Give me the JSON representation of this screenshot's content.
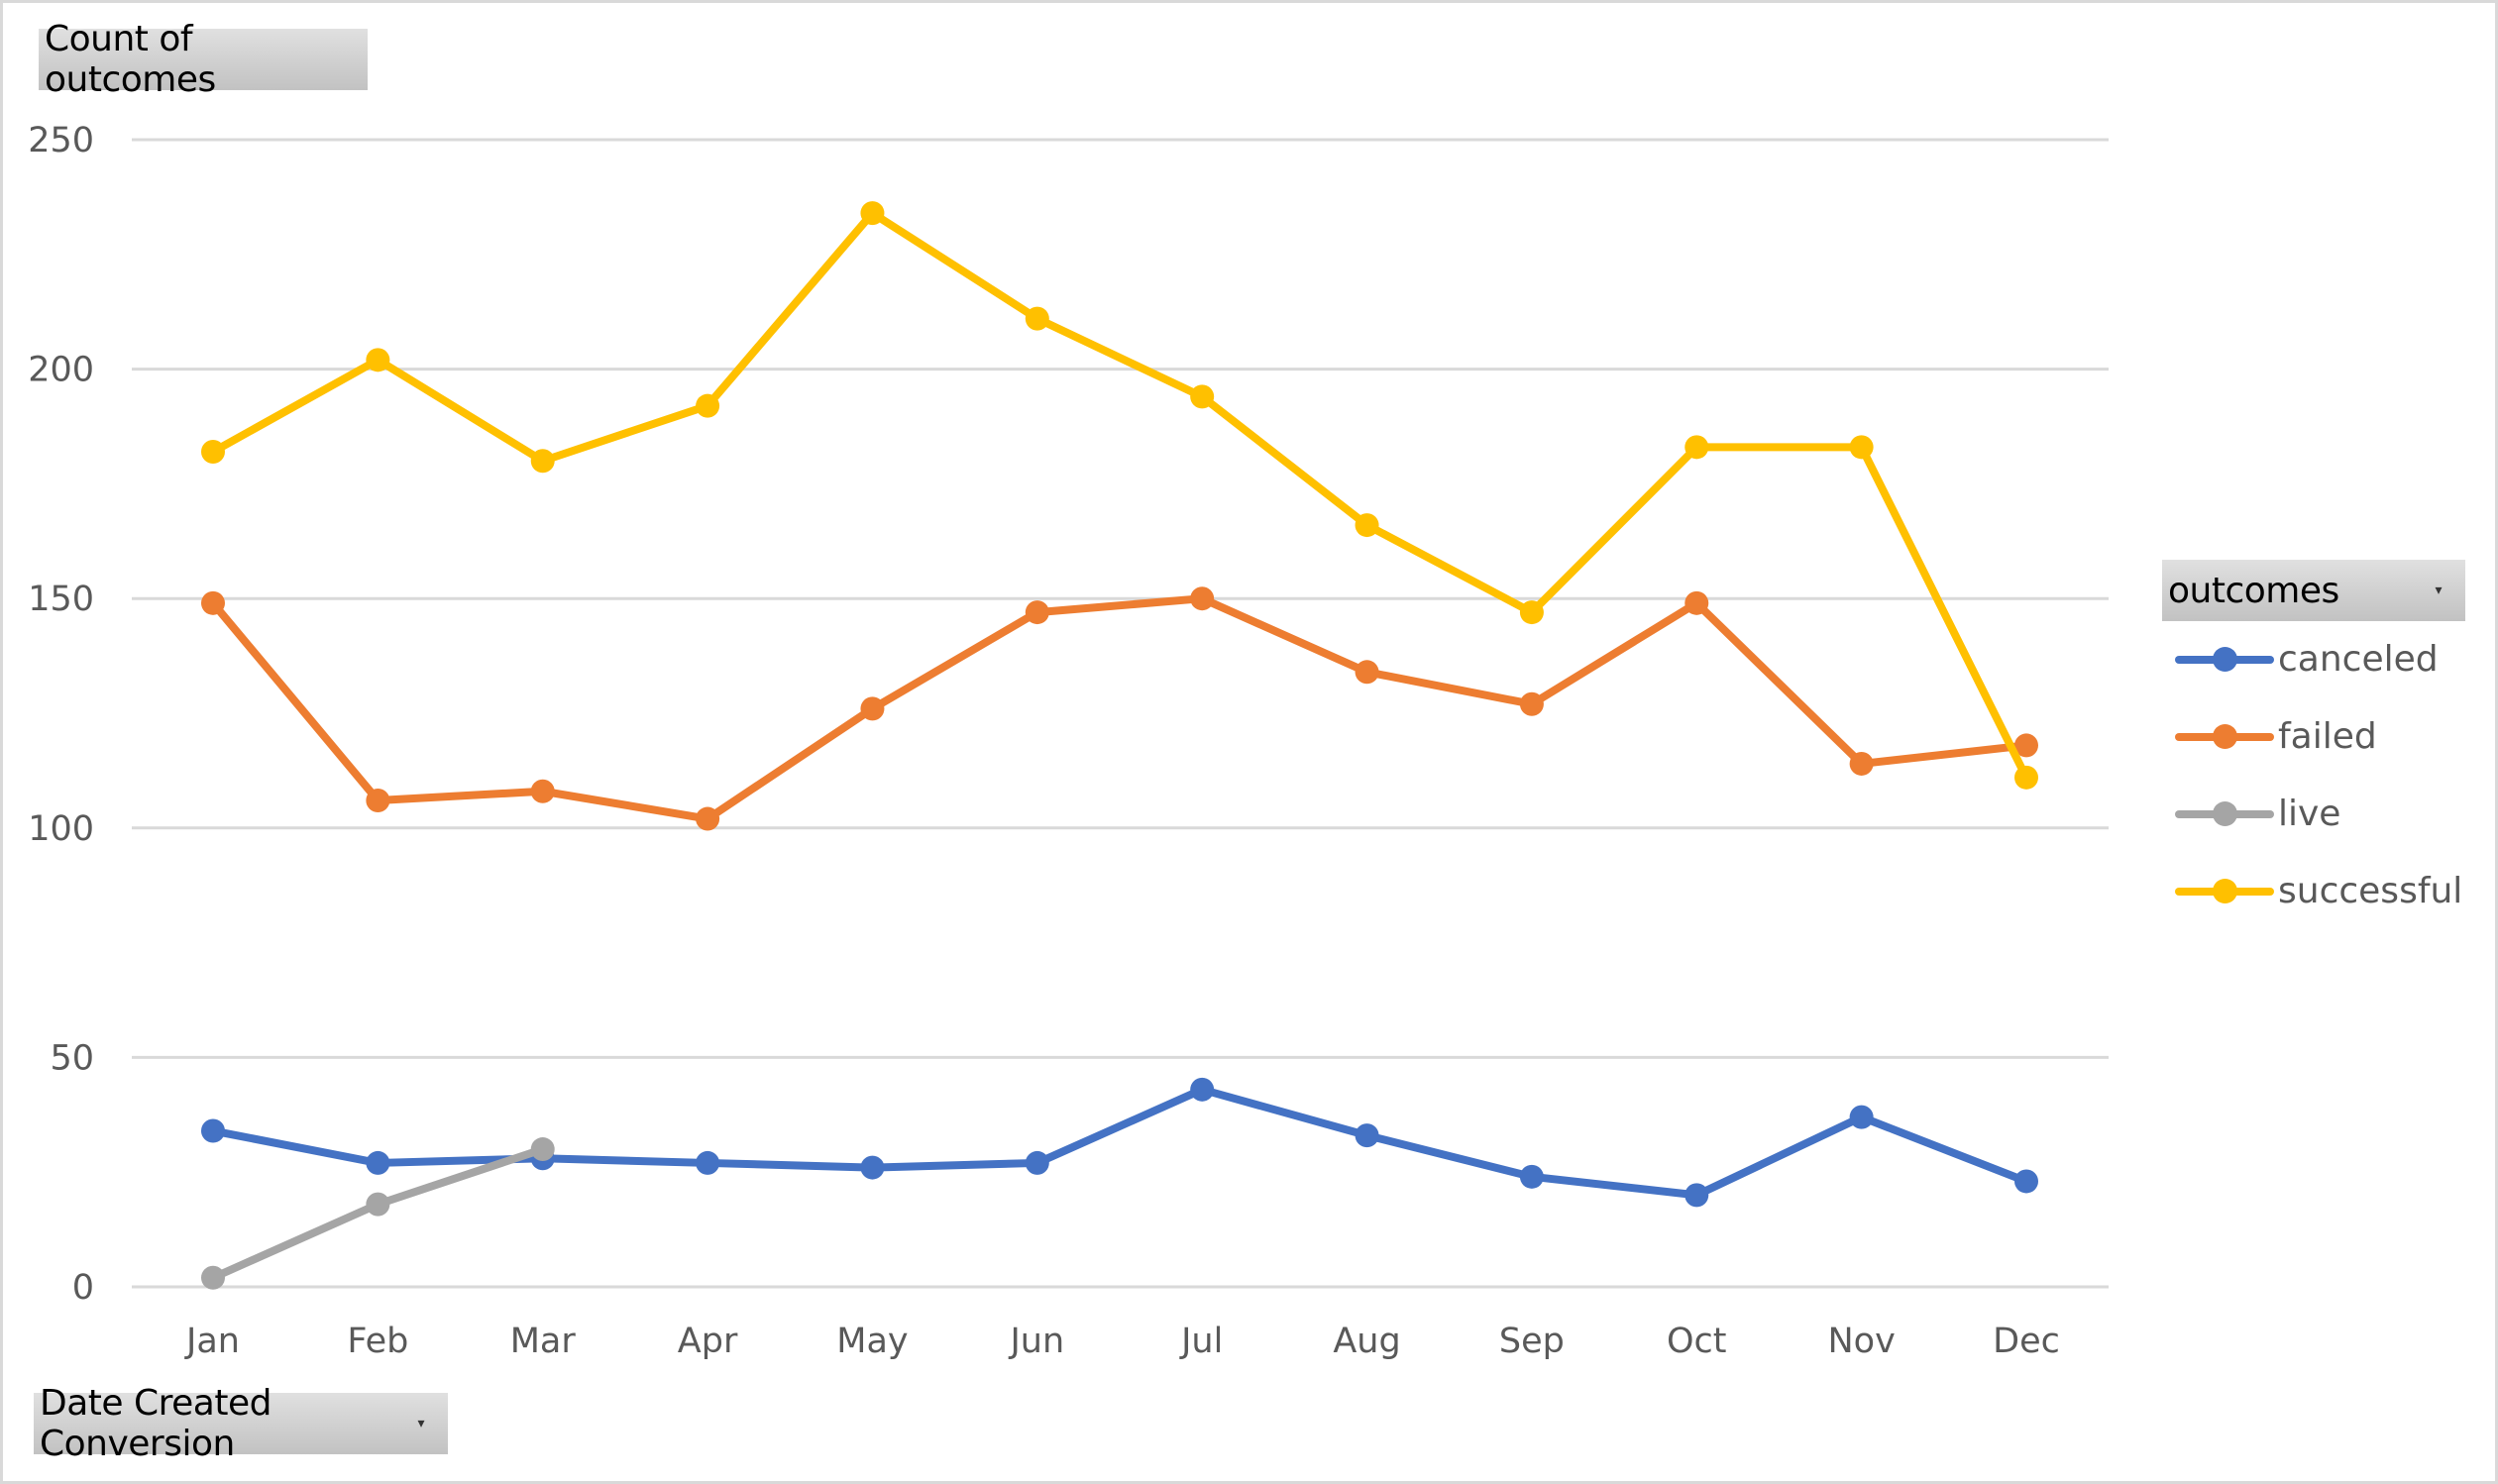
{
  "chart_title_button": {
    "label": "Count of outcomes"
  },
  "axis_field_button": {
    "label": "Date Created Conversion",
    "arrow": "▾"
  },
  "legend": {
    "title": "outcomes",
    "arrow": "▾",
    "items": [
      {
        "label": "canceled",
        "color": "#4472c4"
      },
      {
        "label": "failed",
        "color": "#ed7d31"
      },
      {
        "label": "live",
        "color": "#a5a5a5"
      },
      {
        "label": "successful",
        "color": "#ffc000"
      }
    ]
  },
  "chart_data": {
    "type": "line",
    "title": "Count of outcomes",
    "xlabel": "Date Created Conversion",
    "ylabel": "",
    "categories": [
      "Jan",
      "Feb",
      "Mar",
      "Apr",
      "May",
      "Jun",
      "Jul",
      "Aug",
      "Sep",
      "Oct",
      "Nov",
      "Dec"
    ],
    "ylim": [
      0,
      250
    ],
    "yticks": [
      0,
      50,
      100,
      150,
      200,
      250
    ],
    "grid": true,
    "legend_position": "right",
    "series": [
      {
        "name": "canceled",
        "color": "#4472c4",
        "values": [
          34,
          27,
          28,
          27,
          26,
          27,
          43,
          33,
          24,
          20,
          37,
          23
        ]
      },
      {
        "name": "failed",
        "color": "#ed7d31",
        "values": [
          149,
          106,
          108,
          102,
          126,
          147,
          150,
          134,
          127,
          149,
          114,
          118
        ]
      },
      {
        "name": "live",
        "color": "#a5a5a5",
        "values": [
          2,
          18,
          30,
          null,
          null,
          null,
          null,
          null,
          null,
          null,
          null,
          null
        ]
      },
      {
        "name": "successful",
        "color": "#ffc000",
        "values": [
          182,
          202,
          180,
          192,
          234,
          211,
          194,
          166,
          147,
          183,
          183,
          111
        ]
      }
    ]
  }
}
